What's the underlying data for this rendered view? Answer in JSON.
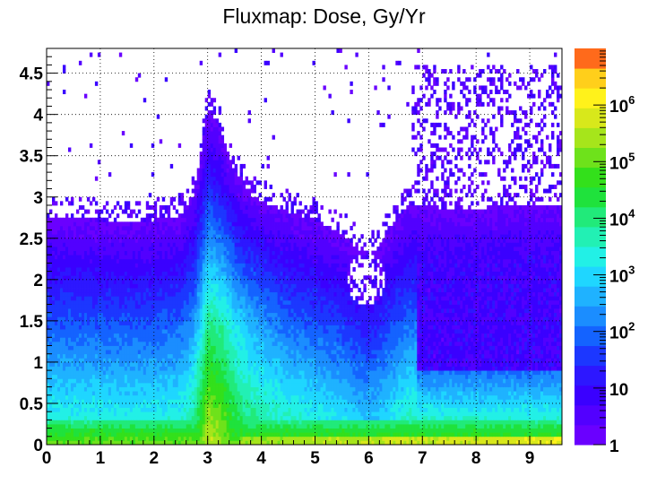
{
  "chart_data": {
    "type": "heatmap",
    "title": "Fluxmap: Dose, Gy/Yr",
    "xlim": [
      0,
      9.6
    ],
    "ylim": [
      0,
      4.8
    ],
    "x_ticks": [
      "0",
      "1",
      "2",
      "3",
      "4",
      "5",
      "6",
      "7",
      "8",
      "9"
    ],
    "y_ticks": [
      "0",
      "0.5",
      "1",
      "1.5",
      "2",
      "2.5",
      "3",
      "3.5",
      "4",
      "4.5"
    ],
    "colorbar": {
      "scale": "log",
      "range": [
        1,
        10000000
      ],
      "tick_labels": [
        {
          "value": 1,
          "label": "1"
        },
        {
          "value": 10,
          "label": "10"
        },
        {
          "value": 100,
          "label": "10",
          "exp": "2"
        },
        {
          "value": 1000,
          "label": "10",
          "exp": "3"
        },
        {
          "value": 10000,
          "label": "10",
          "exp": "4"
        },
        {
          "value": 100000,
          "label": "10",
          "exp": "5"
        },
        {
          "value": 1000000,
          "label": "10",
          "exp": "6"
        }
      ]
    },
    "grid": true,
    "z_profile": {
      "description_units": "log10 of Gy/Yr",
      "x_edge": [
        0,
        0.5,
        1.0,
        1.5,
        2.0,
        2.5,
        2.75,
        3.0,
        3.25,
        3.5,
        3.75,
        4.0,
        4.5,
        5.0,
        5.5,
        5.75,
        6.0,
        6.25,
        6.5,
        6.75,
        7.0,
        7.5,
        8.0,
        8.5,
        9.0,
        9.6
      ],
      "y_edge": [
        2.75,
        2.75,
        2.72,
        2.72,
        2.72,
        2.78,
        3.05,
        4.05,
        3.8,
        3.3,
        3.05,
        2.95,
        2.82,
        2.72,
        2.55,
        2.4,
        2.3,
        2.45,
        2.7,
        2.9,
        2.9,
        2.85,
        2.85,
        2.9,
        2.9,
        2.9
      ]
    }
  }
}
